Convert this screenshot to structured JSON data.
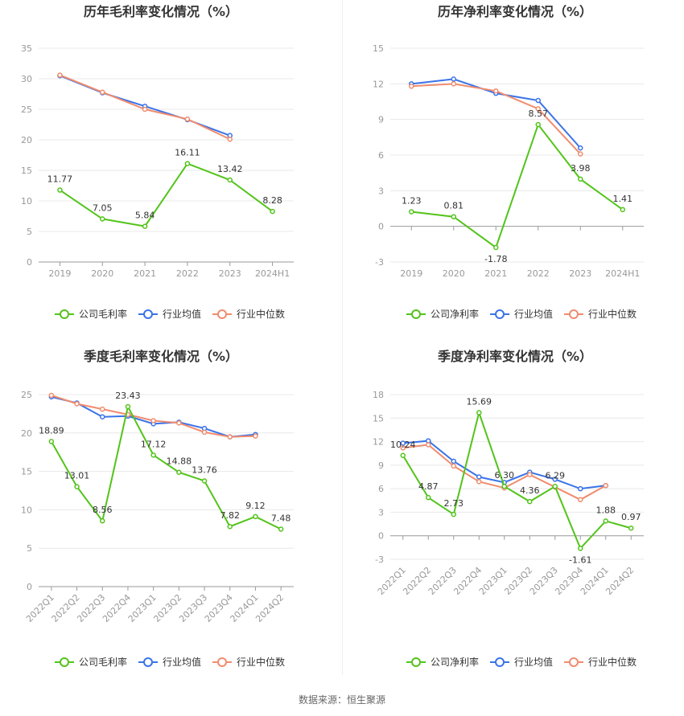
{
  "colors": {
    "company": "#52c41a",
    "industry_avg": "#3a73e8",
    "industry_median": "#f08c6e"
  },
  "source_text": "数据来源：恒生聚源",
  "chart_data": [
    {
      "id": "annual-gross",
      "type": "line",
      "title": "历年毛利率变化情况（%）",
      "categories": [
        "2019",
        "2020",
        "2021",
        "2022",
        "2023",
        "2024H1"
      ],
      "ylim": [
        0,
        35
      ],
      "yticks": [
        0,
        5,
        10,
        15,
        20,
        25,
        30,
        35
      ],
      "rotate_x": false,
      "series": [
        {
          "name": "公司毛利率",
          "role": "company",
          "values": [
            11.77,
            7.05,
            5.84,
            16.11,
            13.42,
            8.28
          ],
          "show_labels": true
        },
        {
          "name": "行业均值",
          "role": "industry_avg",
          "values": [
            30.5,
            27.7,
            25.5,
            23.3,
            20.7,
            null
          ],
          "show_labels": false
        },
        {
          "name": "行业中位数",
          "role": "industry_median",
          "values": [
            30.6,
            27.8,
            25.0,
            23.4,
            20.1,
            null
          ],
          "show_labels": false
        }
      ],
      "data_labels": [
        "11.77",
        "7.05",
        "5.84",
        "16.11",
        "13.42",
        "8.28"
      ]
    },
    {
      "id": "annual-net",
      "type": "line",
      "title": "历年净利率变化情况（%）",
      "categories": [
        "2019",
        "2020",
        "2021",
        "2022",
        "2023",
        "2024H1"
      ],
      "ylim": [
        -3,
        15
      ],
      "yticks": [
        -3,
        0,
        3,
        6,
        9,
        12,
        15
      ],
      "rotate_x": false,
      "series": [
        {
          "name": "公司净利率",
          "role": "company",
          "values": [
            1.23,
            0.81,
            -1.78,
            8.57,
            3.98,
            1.41
          ],
          "show_labels": true
        },
        {
          "name": "行业均值",
          "role": "industry_avg",
          "values": [
            12.0,
            12.4,
            11.2,
            10.6,
            6.6,
            null
          ],
          "show_labels": false
        },
        {
          "name": "行业中位数",
          "role": "industry_median",
          "values": [
            11.8,
            12.0,
            11.4,
            9.9,
            6.1,
            null
          ],
          "show_labels": false
        }
      ],
      "data_labels": [
        "1.23",
        "0.81",
        "-1.78",
        "8.57",
        "3.98",
        "1.41"
      ]
    },
    {
      "id": "quarterly-gross",
      "type": "line",
      "title": "季度毛利率变化情况（%）",
      "categories": [
        "2022Q1",
        "2022Q2",
        "2022Q3",
        "2022Q4",
        "2023Q1",
        "2023Q2",
        "2023Q3",
        "2023Q4",
        "2024Q1",
        "2024Q2"
      ],
      "ylim": [
        0,
        25
      ],
      "yticks": [
        0,
        5,
        10,
        15,
        20,
        25
      ],
      "rotate_x": true,
      "series": [
        {
          "name": "公司毛利率",
          "role": "company",
          "values": [
            18.89,
            13.01,
            8.56,
            23.43,
            17.12,
            14.88,
            13.76,
            7.82,
            9.12,
            7.48
          ],
          "show_labels": true
        },
        {
          "name": "行业均值",
          "role": "industry_avg",
          "values": [
            24.7,
            23.9,
            22.1,
            22.2,
            21.2,
            21.4,
            20.6,
            19.5,
            19.8,
            null
          ],
          "show_labels": false
        },
        {
          "name": "行业中位数",
          "role": "industry_median",
          "values": [
            24.9,
            23.8,
            23.1,
            22.4,
            21.6,
            21.3,
            20.1,
            19.5,
            19.6,
            null
          ],
          "show_labels": false
        }
      ],
      "data_labels": [
        "18.89",
        "13.01",
        "8.56",
        "23.43",
        "17.12",
        "14.88",
        "13.76",
        "7.82",
        "9.12",
        "7.48"
      ]
    },
    {
      "id": "quarterly-net",
      "type": "line",
      "title": "季度净利率变化情况（%）",
      "categories": [
        "2022Q1",
        "2022Q2",
        "2022Q3",
        "2022Q4",
        "2023Q1",
        "2023Q2",
        "2023Q3",
        "2023Q4",
        "2024Q1",
        "2024Q2"
      ],
      "ylim": [
        -3,
        18
      ],
      "yticks": [
        -3,
        0,
        3,
        6,
        9,
        12,
        15,
        18
      ],
      "rotate_x": true,
      "series": [
        {
          "name": "公司净利率",
          "role": "company",
          "values": [
            10.24,
            4.87,
            2.73,
            15.69,
            6.3,
            4.36,
            6.29,
            -1.61,
            1.88,
            0.97
          ],
          "show_labels": true
        },
        {
          "name": "行业均值",
          "role": "industry_avg",
          "values": [
            11.8,
            12.1,
            9.5,
            7.5,
            6.8,
            8.1,
            7.2,
            6.0,
            6.4,
            null
          ],
          "show_labels": false
        },
        {
          "name": "行业中位数",
          "role": "industry_median",
          "values": [
            11.2,
            11.6,
            8.9,
            6.9,
            6.1,
            7.8,
            6.2,
            4.6,
            6.4,
            null
          ],
          "show_labels": false
        }
      ],
      "data_labels": [
        "10.24",
        "4.87",
        "2.73",
        "15.69",
        "6.30",
        "4.36",
        "6.29",
        "-1.61",
        "1.88",
        "0.97"
      ]
    }
  ]
}
